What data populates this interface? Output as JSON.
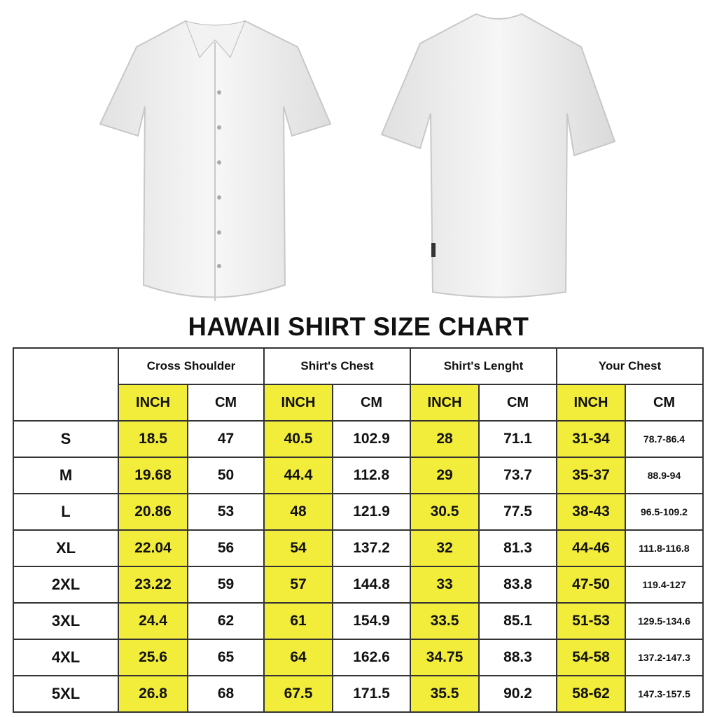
{
  "title": "HAWAII SHIRT SIZE CHART",
  "colors": {
    "highlight": "#f2ec3a",
    "border": "#333333"
  },
  "images": [
    "shirt-front",
    "shirt-back"
  ],
  "groups": [
    "Cross Shoulder",
    "Shirt's Chest",
    "Shirt's Lenght",
    "Your Chest"
  ],
  "units": [
    "INCH",
    "CM"
  ],
  "rows": [
    [
      "S",
      "18.5",
      "47",
      "40.5",
      "102.9",
      "28",
      "71.1",
      "31-34",
      "78.7-86.4"
    ],
    [
      "M",
      "19.68",
      "50",
      "44.4",
      "112.8",
      "29",
      "73.7",
      "35-37",
      "88.9-94"
    ],
    [
      "L",
      "20.86",
      "53",
      "48",
      "121.9",
      "30.5",
      "77.5",
      "38-43",
      "96.5-109.2"
    ],
    [
      "XL",
      "22.04",
      "56",
      "54",
      "137.2",
      "32",
      "81.3",
      "44-46",
      "111.8-116.8"
    ],
    [
      "2XL",
      "23.22",
      "59",
      "57",
      "144.8",
      "33",
      "83.8",
      "47-50",
      "119.4-127"
    ],
    [
      "3XL",
      "24.4",
      "62",
      "61",
      "154.9",
      "33.5",
      "85.1",
      "51-53",
      "129.5-134.6"
    ],
    [
      "4XL",
      "25.6",
      "65",
      "64",
      "162.6",
      "34.75",
      "88.3",
      "54-58",
      "137.2-147.3"
    ],
    [
      "5XL",
      "26.8",
      "68",
      "67.5",
      "171.5",
      "35.5",
      "90.2",
      "58-62",
      "147.3-157.5"
    ]
  ]
}
